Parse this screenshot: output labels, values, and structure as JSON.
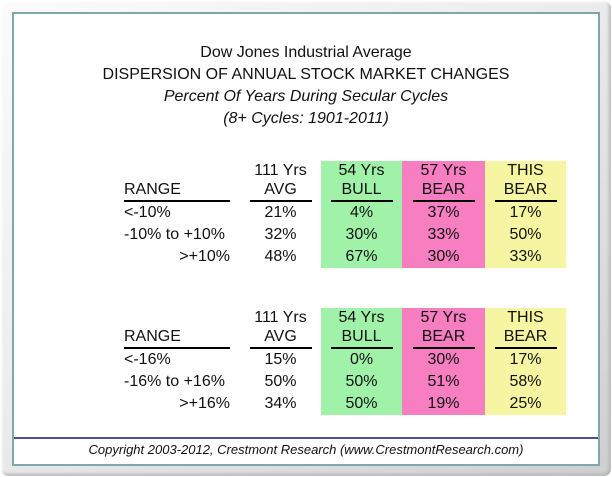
{
  "title": {
    "line1": "Dow Jones Industrial Average",
    "line2": "DISPERSION OF ANNUAL STOCK MARKET CHANGES",
    "line3": "Percent Of Years During Secular Cycles",
    "line4": "(8+ Cycles: 1901-2011)"
  },
  "colors": {
    "bull_green": "#a0f2a8",
    "bear_pink": "#f77ec1",
    "this_bear_yellow": "#f6f6a2",
    "frame_teal": "#7fa8ad",
    "footer_rule_navy": "#4a4e9c"
  },
  "chart_data": [
    {
      "type": "table",
      "name": "dispersion-10-percent-bands",
      "header_line1": [
        "",
        "111 Yrs",
        "54 Yrs",
        "57 Yrs",
        "THIS"
      ],
      "header_line2": [
        "RANGE",
        "AVG",
        "BULL",
        "BEAR",
        "BEAR"
      ],
      "column_highlights": [
        "none",
        "none",
        "green",
        "pink",
        "yellow"
      ],
      "rows": [
        [
          "<-10%",
          "21%",
          "4%",
          "37%",
          "17%"
        ],
        [
          "-10% to +10%",
          "32%",
          "30%",
          "33%",
          "50%"
        ],
        [
          ">+10%",
          "48%",
          "67%",
          "30%",
          "33%"
        ]
      ]
    },
    {
      "type": "table",
      "name": "dispersion-16-percent-bands",
      "header_line1": [
        "",
        "111 Yrs",
        "54 Yrs",
        "57 Yrs",
        "THIS"
      ],
      "header_line2": [
        "RANGE",
        "AVG",
        "BULL",
        "BEAR",
        "BEAR"
      ],
      "column_highlights": [
        "none",
        "none",
        "green",
        "pink",
        "yellow"
      ],
      "rows": [
        [
          "<-16%",
          "15%",
          "0%",
          "30%",
          "17%"
        ],
        [
          "-16% to +16%",
          "50%",
          "50%",
          "51%",
          "58%"
        ],
        [
          ">+16%",
          "34%",
          "50%",
          "19%",
          "25%"
        ]
      ]
    }
  ],
  "footer": {
    "copyright": "Copyright 2003-2012, Crestmont Research (www.CrestmontResearch.com)"
  }
}
